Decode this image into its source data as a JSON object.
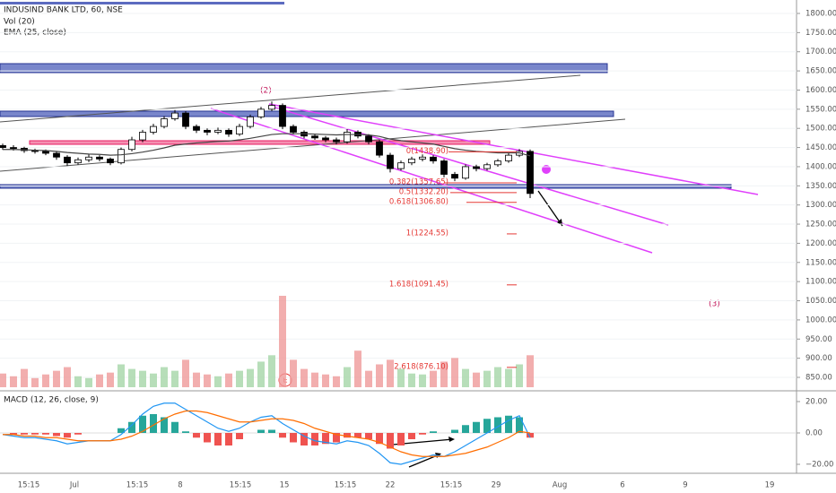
{
  "chart_data": {
    "type": "candlestick",
    "title": "INDUSIND BANK LTD, 60, NSE",
    "volume_label": "Vol (20)",
    "ema_label": "EMA (25, close)",
    "macd_label": "MACD (12, 26, close, 9)",
    "xtick_labels": [
      "15:15",
      "Jul",
      "15:15",
      "8",
      "15:15",
      "15",
      "15:15",
      "22",
      "15:15",
      "29",
      "Aug",
      "6",
      "9",
      "19"
    ],
    "open": [
      1455,
      1450,
      1448,
      1442,
      1440,
      1435,
      1425,
      1410,
      1418,
      1425,
      1420,
      1410,
      1445,
      1470,
      1490,
      1505,
      1525,
      1540,
      1505,
      1495,
      1490,
      1495,
      1485,
      1505,
      1530,
      1550,
      1560,
      1505,
      1490,
      1480,
      1475,
      1470,
      1465,
      1490,
      1480,
      1465,
      1430,
      1395,
      1410,
      1420,
      1425,
      1415,
      1380,
      1370,
      1400,
      1395,
      1405,
      1415,
      1430,
      1440
    ],
    "high": [
      1460,
      1456,
      1452,
      1447,
      1445,
      1440,
      1430,
      1424,
      1432,
      1430,
      1424,
      1450,
      1478,
      1496,
      1512,
      1532,
      1548,
      1545,
      1510,
      1500,
      1502,
      1500,
      1512,
      1536,
      1556,
      1570,
      1565,
      1510,
      1495,
      1486,
      1480,
      1476,
      1498,
      1495,
      1485,
      1470,
      1436,
      1416,
      1426,
      1432,
      1430,
      1420,
      1386,
      1406,
      1405,
      1410,
      1420,
      1436,
      1446,
      1445
    ],
    "low": [
      1444,
      1442,
      1436,
      1434,
      1430,
      1418,
      1402,
      1405,
      1412,
      1414,
      1404,
      1406,
      1440,
      1464,
      1484,
      1500,
      1520,
      1498,
      1488,
      1482,
      1485,
      1478,
      1480,
      1500,
      1525,
      1545,
      1498,
      1484,
      1474,
      1470,
      1464,
      1458,
      1460,
      1474,
      1458,
      1424,
      1385,
      1390,
      1404,
      1414,
      1408,
      1372,
      1362,
      1366,
      1388,
      1390,
      1400,
      1410,
      1425,
      1318
    ],
    "close": [
      1450,
      1448,
      1442,
      1440,
      1435,
      1425,
      1410,
      1418,
      1425,
      1420,
      1410,
      1445,
      1470,
      1490,
      1505,
      1525,
      1540,
      1505,
      1495,
      1490,
      1495,
      1485,
      1505,
      1530,
      1550,
      1560,
      1505,
      1490,
      1480,
      1475,
      1470,
      1465,
      1490,
      1480,
      1465,
      1430,
      1395,
      1410,
      1420,
      1425,
      1415,
      1380,
      1370,
      1400,
      1395,
      1405,
      1415,
      1430,
      1440,
      1330
    ],
    "ema": [
      1445,
      1445,
      1444,
      1443,
      1442,
      1440,
      1437,
      1435,
      1433,
      1432,
      1430,
      1431,
      1434,
      1438,
      1443,
      1449,
      1456,
      1459,
      1462,
      1464,
      1466,
      1467,
      1470,
      1474,
      1479,
      1484,
      1486,
      1486,
      1486,
      1485,
      1484,
      1483,
      1484,
      1484,
      1483,
      1479,
      1472,
      1468,
      1465,
      1462,
      1459,
      1453,
      1447,
      1443,
      1440,
      1438,
      1436,
      1436,
      1436,
      1428
    ],
    "volume": [
      15,
      12,
      20,
      10,
      14,
      18,
      22,
      12,
      10,
      14,
      16,
      25,
      20,
      18,
      15,
      22,
      18,
      30,
      16,
      14,
      12,
      15,
      18,
      20,
      28,
      35,
      100,
      30,
      20,
      16,
      14,
      12,
      22,
      40,
      18,
      25,
      30,
      20,
      15,
      14,
      18,
      28,
      32,
      20,
      16,
      18,
      22,
      20,
      25,
      35
    ],
    "vol_ylim": [
      0,
      100
    ],
    "ylim": [
      850,
      1800
    ],
    "yticks": [
      {
        "value": 1800,
        "label": "1800.00"
      },
      {
        "value": 1750,
        "label": "1750.00"
      },
      {
        "value": 1700,
        "label": "1700.00"
      },
      {
        "value": 1650,
        "label": "1650.00"
      },
      {
        "value": 1600,
        "label": "1600.00"
      },
      {
        "value": 1550,
        "label": "1550.00"
      },
      {
        "value": 1500,
        "label": "1500.00"
      },
      {
        "value": 1450,
        "label": "1450.00"
      },
      {
        "value": 1400,
        "label": "1400.00"
      },
      {
        "value": 1350,
        "label": "1350.00"
      },
      {
        "value": 1300,
        "label": "1300.00"
      },
      {
        "value": 1250,
        "label": "1250.00"
      },
      {
        "value": 1200,
        "label": "1200.00"
      },
      {
        "value": 1150,
        "label": "1150.00"
      },
      {
        "value": 1100,
        "label": "1100.00"
      },
      {
        "value": 1050,
        "label": "1050.00"
      },
      {
        "value": 1000,
        "label": "1000.00"
      },
      {
        "value": 950,
        "label": "950.00"
      },
      {
        "value": 900,
        "label": "900.00"
      },
      {
        "value": 850,
        "label": "850.00"
      }
    ],
    "fib_levels": [
      {
        "label": "0(1438.90)",
        "value": 1438.9
      },
      {
        "label": "0.382(1357.65)",
        "value": 1357.65
      },
      {
        "label": "0.5(1332.20)",
        "value": 1332.2
      },
      {
        "label": "0.618(1306.80)",
        "value": 1306.8
      },
      {
        "label": "1(1224.55)",
        "value": 1224.55
      },
      {
        "label": "1.618(1091.45)",
        "value": 1091.45
      },
      {
        "label": "2.618(876.10)",
        "value": 876.1
      }
    ],
    "wave_labels": [
      "(2)",
      "(3)"
    ],
    "event_marker": "E",
    "macd": [
      -1,
      -2,
      -3,
      -3,
      -4,
      -5,
      -7,
      -6,
      -5,
      -5,
      -5,
      -1,
      5,
      12,
      17,
      19,
      19,
      15,
      11,
      7,
      3,
      1,
      3,
      7,
      10,
      11,
      6,
      2,
      -2,
      -5,
      -6,
      -7,
      -5,
      -6,
      -8,
      -13,
      -19,
      -20,
      -18,
      -16,
      -14,
      -15,
      -12,
      -8,
      -4,
      0,
      4,
      8,
      11,
      -3
    ],
    "signal": [
      -1,
      -1,
      -2,
      -2,
      -3,
      -3,
      -4,
      -5,
      -5,
      -5,
      -5,
      -4,
      -2,
      1,
      5,
      9,
      12,
      14,
      14,
      13,
      11,
      9,
      7,
      7,
      8,
      9,
      9,
      8,
      6,
      3,
      1,
      -1,
      -2,
      -3,
      -4,
      -6,
      -9,
      -12,
      -14,
      -15,
      -15,
      -15,
      -14,
      -13,
      -11,
      -9,
      -6,
      -3,
      1,
      0
    ],
    "histogram": [
      0,
      -1,
      -1,
      -1,
      -1,
      -2,
      -3,
      -1,
      0,
      0,
      0,
      3,
      7,
      11,
      12,
      10,
      7,
      1,
      -3,
      -6,
      -8,
      -8,
      -4,
      0,
      2,
      2,
      -3,
      -6,
      -8,
      -8,
      -7,
      -6,
      -3,
      -3,
      -4,
      -7,
      -10,
      -8,
      -4,
      -1,
      1,
      0,
      2,
      5,
      7,
      9,
      10,
      11,
      10,
      -3
    ],
    "macd_ylim": [
      -25,
      25
    ],
    "macd_yticks": [
      {
        "value": 20,
        "label": "20.00"
      },
      {
        "value": 0,
        "label": "0.00"
      },
      {
        "value": -20,
        "label": "−20.00"
      }
    ],
    "colors": {
      "up": "#ffffff",
      "down": "#000000",
      "ema": "#444444",
      "macd": "#2196f3",
      "signal": "#ff6d00",
      "hist_up": "#26a69a",
      "hist_down": "#ef5350",
      "vol_up": "#a5d6a7",
      "vol_down": "#ef9a9a"
    }
  }
}
